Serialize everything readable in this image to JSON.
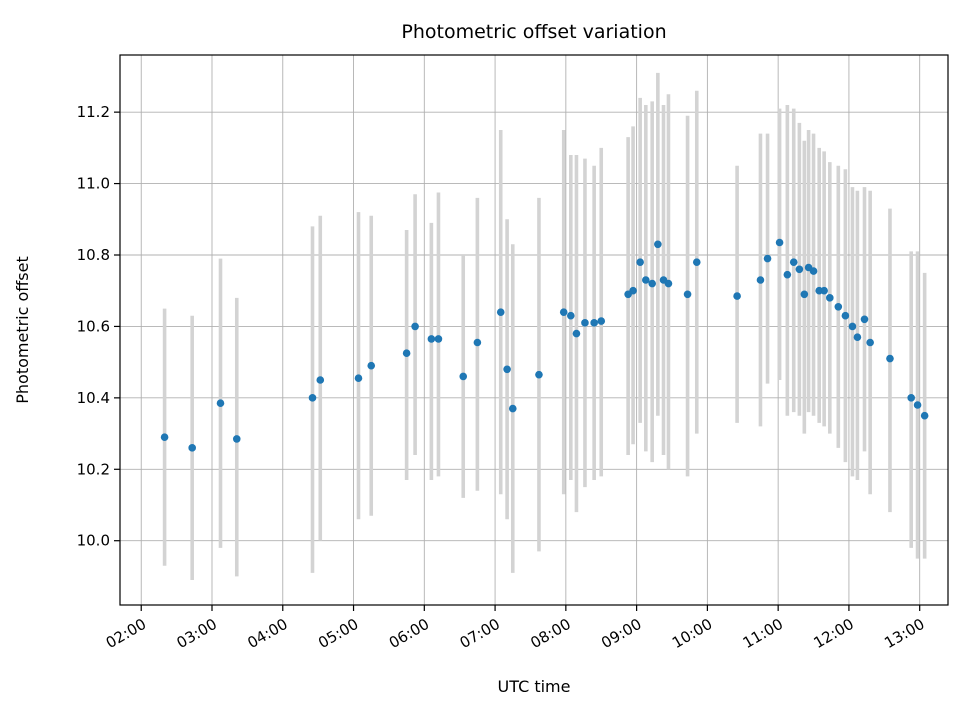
{
  "chart_data": {
    "type": "scatter",
    "title": "Photometric offset variation",
    "xlabel": "UTC time",
    "ylabel": "Photometric offset",
    "grid": true,
    "legend": "none",
    "xlim": [
      1.7,
      13.4
    ],
    "ylim": [
      9.82,
      11.36
    ],
    "x_ticks": {
      "values": [
        2,
        3,
        4,
        5,
        6,
        7,
        8,
        9,
        10,
        11,
        12,
        13
      ],
      "labels": [
        "02:00",
        "03:00",
        "04:00",
        "05:00",
        "06:00",
        "07:00",
        "08:00",
        "09:00",
        "10:00",
        "11:00",
        "12:00",
        "13:00"
      ]
    },
    "y_ticks": {
      "values": [
        10.0,
        10.2,
        10.4,
        10.6,
        10.8,
        11.0,
        11.2
      ],
      "labels": [
        "10.0",
        "10.2",
        "10.4",
        "10.6",
        "10.8",
        "11.0",
        "11.2"
      ]
    },
    "colors": {
      "marker": "#1f77b4",
      "errorbar": "#d3d3d3",
      "grid": "#b0b0b0",
      "spine": "#000000",
      "background": "#ffffff"
    },
    "points": [
      {
        "time_h": 2.33,
        "value": 10.29,
        "lo": 9.93,
        "hi": 10.65
      },
      {
        "time_h": 2.72,
        "value": 10.26,
        "lo": 9.89,
        "hi": 10.63
      },
      {
        "time_h": 3.12,
        "value": 10.385,
        "lo": 9.98,
        "hi": 10.79
      },
      {
        "time_h": 3.35,
        "value": 10.285,
        "lo": 9.9,
        "hi": 10.68
      },
      {
        "time_h": 4.42,
        "value": 10.4,
        "lo": 9.91,
        "hi": 10.88
      },
      {
        "time_h": 4.53,
        "value": 10.45,
        "lo": 10.0,
        "hi": 10.91
      },
      {
        "time_h": 5.07,
        "value": 10.455,
        "lo": 10.06,
        "hi": 10.92
      },
      {
        "time_h": 5.25,
        "value": 10.49,
        "lo": 10.07,
        "hi": 10.91
      },
      {
        "time_h": 5.75,
        "value": 10.525,
        "lo": 10.17,
        "hi": 10.87
      },
      {
        "time_h": 5.87,
        "value": 10.6,
        "lo": 10.24,
        "hi": 10.97
      },
      {
        "time_h": 6.1,
        "value": 10.565,
        "lo": 10.17,
        "hi": 10.89
      },
      {
        "time_h": 6.2,
        "value": 10.565,
        "lo": 10.18,
        "hi": 10.975
      },
      {
        "time_h": 6.55,
        "value": 10.46,
        "lo": 10.12,
        "hi": 10.8
      },
      {
        "time_h": 6.75,
        "value": 10.555,
        "lo": 10.14,
        "hi": 10.96
      },
      {
        "time_h": 7.08,
        "value": 10.64,
        "lo": 10.13,
        "hi": 11.15
      },
      {
        "time_h": 7.17,
        "value": 10.48,
        "lo": 10.06,
        "hi": 10.9
      },
      {
        "time_h": 7.25,
        "value": 10.37,
        "lo": 9.91,
        "hi": 10.83
      },
      {
        "time_h": 7.62,
        "value": 10.465,
        "lo": 9.97,
        "hi": 10.96
      },
      {
        "time_h": 7.97,
        "value": 10.64,
        "lo": 10.13,
        "hi": 11.15
      },
      {
        "time_h": 8.07,
        "value": 10.63,
        "lo": 10.17,
        "hi": 11.08
      },
      {
        "time_h": 8.15,
        "value": 10.58,
        "lo": 10.08,
        "hi": 11.08
      },
      {
        "time_h": 8.27,
        "value": 10.61,
        "lo": 10.15,
        "hi": 11.07
      },
      {
        "time_h": 8.4,
        "value": 10.61,
        "lo": 10.17,
        "hi": 11.05
      },
      {
        "time_h": 8.5,
        "value": 10.615,
        "lo": 10.18,
        "hi": 11.1
      },
      {
        "time_h": 8.88,
        "value": 10.69,
        "lo": 10.24,
        "hi": 11.13
      },
      {
        "time_h": 8.95,
        "value": 10.7,
        "lo": 10.27,
        "hi": 11.16
      },
      {
        "time_h": 9.05,
        "value": 10.78,
        "lo": 10.33,
        "hi": 11.24
      },
      {
        "time_h": 9.13,
        "value": 10.73,
        "lo": 10.25,
        "hi": 11.22
      },
      {
        "time_h": 9.22,
        "value": 10.72,
        "lo": 10.22,
        "hi": 11.23
      },
      {
        "time_h": 9.3,
        "value": 10.83,
        "lo": 10.35,
        "hi": 11.31
      },
      {
        "time_h": 9.38,
        "value": 10.73,
        "lo": 10.24,
        "hi": 11.22
      },
      {
        "time_h": 9.45,
        "value": 10.72,
        "lo": 10.2,
        "hi": 11.25
      },
      {
        "time_h": 9.72,
        "value": 10.69,
        "lo": 10.18,
        "hi": 11.19
      },
      {
        "time_h": 9.85,
        "value": 10.78,
        "lo": 10.3,
        "hi": 11.26
      },
      {
        "time_h": 10.42,
        "value": 10.685,
        "lo": 10.33,
        "hi": 11.05
      },
      {
        "time_h": 10.75,
        "value": 10.73,
        "lo": 10.32,
        "hi": 11.14
      },
      {
        "time_h": 10.85,
        "value": 10.79,
        "lo": 10.44,
        "hi": 11.14
      },
      {
        "time_h": 11.02,
        "value": 10.835,
        "lo": 10.45,
        "hi": 11.21
      },
      {
        "time_h": 11.13,
        "value": 10.745,
        "lo": 10.35,
        "hi": 11.22
      },
      {
        "time_h": 11.22,
        "value": 10.78,
        "lo": 10.36,
        "hi": 11.21
      },
      {
        "time_h": 11.3,
        "value": 10.76,
        "lo": 10.35,
        "hi": 11.17
      },
      {
        "time_h": 11.37,
        "value": 10.69,
        "lo": 10.3,
        "hi": 11.12
      },
      {
        "time_h": 11.43,
        "value": 10.765,
        "lo": 10.36,
        "hi": 11.15
      },
      {
        "time_h": 11.5,
        "value": 10.755,
        "lo": 10.35,
        "hi": 11.14
      },
      {
        "time_h": 11.58,
        "value": 10.7,
        "lo": 10.33,
        "hi": 11.1
      },
      {
        "time_h": 11.65,
        "value": 10.7,
        "lo": 10.32,
        "hi": 11.09
      },
      {
        "time_h": 11.73,
        "value": 10.68,
        "lo": 10.3,
        "hi": 11.06
      },
      {
        "time_h": 11.85,
        "value": 10.655,
        "lo": 10.26,
        "hi": 11.05
      },
      {
        "time_h": 11.95,
        "value": 10.63,
        "lo": 10.22,
        "hi": 11.04
      },
      {
        "time_h": 12.05,
        "value": 10.6,
        "lo": 10.18,
        "hi": 10.99
      },
      {
        "time_h": 12.12,
        "value": 10.57,
        "lo": 10.17,
        "hi": 10.98
      },
      {
        "time_h": 12.22,
        "value": 10.62,
        "lo": 10.25,
        "hi": 10.99
      },
      {
        "time_h": 12.3,
        "value": 10.555,
        "lo": 10.13,
        "hi": 10.98
      },
      {
        "time_h": 12.58,
        "value": 10.51,
        "lo": 10.08,
        "hi": 10.93
      },
      {
        "time_h": 12.88,
        "value": 10.4,
        "lo": 9.98,
        "hi": 10.81
      },
      {
        "time_h": 12.97,
        "value": 10.38,
        "lo": 9.95,
        "hi": 10.81
      },
      {
        "time_h": 13.07,
        "value": 10.35,
        "lo": 9.95,
        "hi": 10.75
      }
    ]
  }
}
